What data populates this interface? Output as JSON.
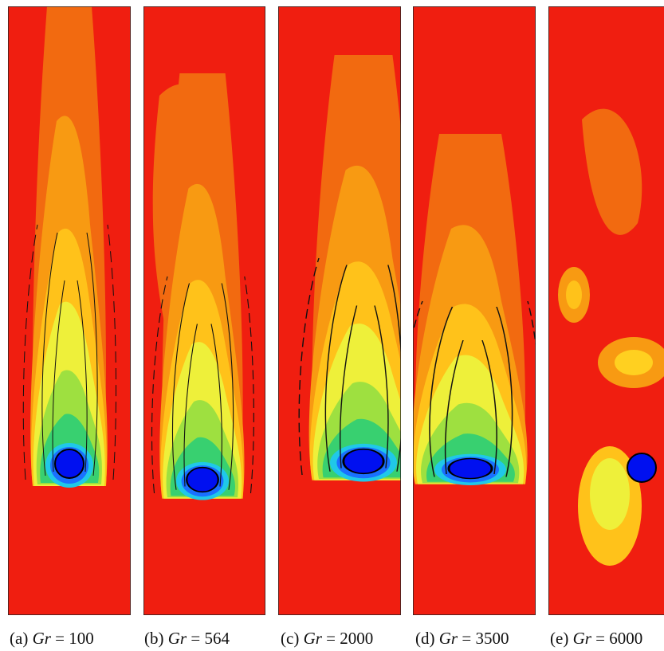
{
  "figure": {
    "panels": [
      {
        "label": "(a)",
        "symbol": "Gr",
        "relation": "=",
        "value": 100
      },
      {
        "label": "(b)",
        "symbol": "Gr",
        "relation": "=",
        "value": 564
      },
      {
        "label": "(c)",
        "symbol": "Gr",
        "relation": "=",
        "value": 2000
      },
      {
        "label": "(d)",
        "symbol": "Gr",
        "relation": "=",
        "value": 3500
      },
      {
        "label": "(e)",
        "symbol": "Gr",
        "relation": "=",
        "value": 6000
      }
    ]
  }
}
